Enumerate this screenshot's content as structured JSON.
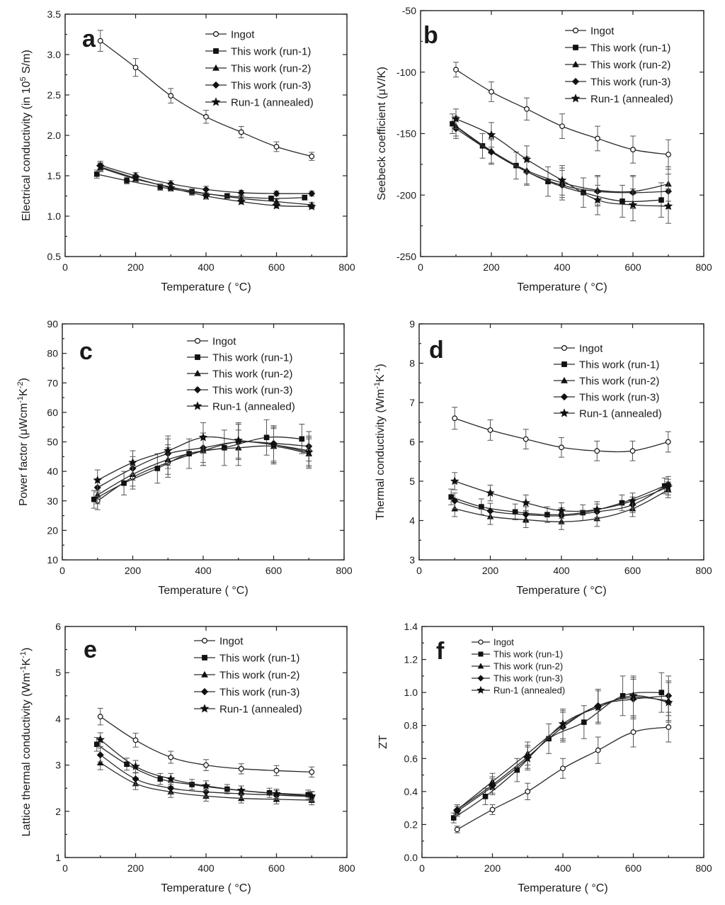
{
  "chart_data": [
    {
      "id": "a",
      "type": "line",
      "panel_letter": "a",
      "xlabel": "Temperature ( °C)",
      "ylabel": "Electrical conductivity (in 10^5 S/m)",
      "ylabel_parts": [
        "Electrical conductivity (in 10",
        "5",
        " S/m)"
      ],
      "xlim": [
        0,
        800
      ],
      "xticks": [
        0,
        200,
        400,
        600,
        800
      ],
      "ylim": [
        0.5,
        3.5
      ],
      "yticks": [
        0.5,
        1.0,
        1.5,
        2.0,
        2.5,
        3.0,
        3.5
      ],
      "ytick_decimals": 1,
      "legend_size": "normal",
      "series": [
        {
          "name": "Ingot",
          "marker": "circle-open",
          "x": [
            100,
            200,
            300,
            400,
            500,
            600,
            700
          ],
          "y": [
            3.17,
            2.84,
            2.49,
            2.23,
            2.04,
            1.86,
            1.74
          ],
          "err": [
            0.13,
            0.11,
            0.09,
            0.08,
            0.07,
            0.06,
            0.05
          ]
        },
        {
          "name": "This work (run-1)",
          "marker": "square",
          "x": [
            90,
            175,
            270,
            360,
            460,
            585,
            680
          ],
          "y": [
            1.52,
            1.44,
            1.36,
            1.3,
            1.25,
            1.22,
            1.23
          ],
          "err": [
            0.05,
            0.04,
            0.04,
            0.04,
            0.03,
            0.03,
            0.03
          ]
        },
        {
          "name": "This work (run-2)",
          "marker": "triangle",
          "x": [
            100,
            200,
            300,
            400,
            500,
            600,
            700
          ],
          "y": [
            1.6,
            1.46,
            1.36,
            1.28,
            1.22,
            1.18,
            1.14
          ],
          "err": [
            0.05,
            0.04,
            0.04,
            0.04,
            0.03,
            0.03,
            0.03
          ]
        },
        {
          "name": "This work (run-3)",
          "marker": "diamond",
          "x": [
            100,
            200,
            300,
            400,
            500,
            600,
            700
          ],
          "y": [
            1.63,
            1.5,
            1.4,
            1.33,
            1.29,
            1.28,
            1.28
          ],
          "err": [
            0.05,
            0.04,
            0.04,
            0.04,
            0.03,
            0.03,
            0.03
          ]
        },
        {
          "name": "Run-1 (annealed)",
          "marker": "star",
          "x": [
            100,
            200,
            300,
            400,
            500,
            600,
            700
          ],
          "y": [
            1.61,
            1.47,
            1.35,
            1.25,
            1.18,
            1.13,
            1.12
          ],
          "err": [
            0.05,
            0.04,
            0.04,
            0.04,
            0.03,
            0.03,
            0.03
          ]
        }
      ]
    },
    {
      "id": "b",
      "type": "line",
      "panel_letter": "b",
      "xlabel": "Temperature ( °C)",
      "ylabel": "Seebeck coefficient (μV/K)",
      "xlim": [
        0,
        800
      ],
      "xticks": [
        0,
        200,
        400,
        600,
        800
      ],
      "ylim": [
        -250,
        -50
      ],
      "yticks": [
        -250,
        -200,
        -150,
        -100,
        -50
      ],
      "ytick_decimals": 0,
      "legend_size": "normal",
      "series": [
        {
          "name": "Ingot",
          "marker": "circle-open",
          "x": [
            100,
            200,
            300,
            400,
            500,
            600,
            700
          ],
          "y": [
            -98,
            -116,
            -130,
            -144,
            -154,
            -163,
            -167
          ],
          "err": [
            6,
            8,
            9,
            10,
            10,
            11,
            12
          ]
        },
        {
          "name": "This work (run-1)",
          "marker": "square",
          "x": [
            90,
            175,
            270,
            360,
            460,
            570,
            680
          ],
          "y": [
            -142,
            -160,
            -176,
            -189,
            -198,
            -205,
            -204
          ],
          "err": [
            8,
            10,
            11,
            12,
            12,
            13,
            14
          ]
        },
        {
          "name": "This work (run-2)",
          "marker": "triangle",
          "x": [
            100,
            200,
            300,
            400,
            500,
            600,
            700
          ],
          "y": [
            -144,
            -164,
            -180,
            -190,
            -196,
            -197,
            -191
          ],
          "err": [
            8,
            10,
            11,
            12,
            12,
            13,
            14
          ]
        },
        {
          "name": "This work (run-3)",
          "marker": "diamond",
          "x": [
            100,
            200,
            300,
            400,
            500,
            600,
            700
          ],
          "y": [
            -146,
            -165,
            -181,
            -192,
            -197,
            -198,
            -197
          ],
          "err": [
            8,
            10,
            11,
            12,
            12,
            13,
            14
          ]
        },
        {
          "name": "Run-1 (annealed)",
          "marker": "star",
          "x": [
            100,
            200,
            300,
            400,
            500,
            600,
            700
          ],
          "y": [
            -138,
            -151,
            -171,
            -188,
            -204,
            -208,
            -209
          ],
          "err": [
            8,
            10,
            11,
            12,
            12,
            13,
            14
          ]
        }
      ]
    },
    {
      "id": "c",
      "type": "line",
      "panel_letter": "c",
      "xlabel": "Temperature ( °C)",
      "ylabel": "Power factor (μWcm^-1K^-2)",
      "ylabel_parts": [
        "Power factor (μWcm",
        "-1",
        "K",
        "-2",
        ")"
      ],
      "xlim": [
        0,
        800
      ],
      "xticks": [
        0,
        200,
        400,
        600,
        800
      ],
      "ylim": [
        10,
        90
      ],
      "yticks": [
        10,
        20,
        30,
        40,
        50,
        60,
        70,
        80,
        90
      ],
      "ytick_decimals": 0,
      "legend_size": "normal",
      "series": [
        {
          "name": "Ingot",
          "marker": "circle-open",
          "x": [
            100,
            200,
            300,
            400,
            500,
            600,
            700
          ],
          "y": [
            30,
            38,
            43,
            47,
            50,
            49,
            47
          ],
          "err": [
            3,
            4,
            5,
            5,
            6,
            6,
            5
          ]
        },
        {
          "name": "This work (run-1)",
          "marker": "square",
          "x": [
            90,
            175,
            270,
            360,
            460,
            580,
            680
          ],
          "y": [
            30.5,
            36,
            41,
            46,
            48,
            51.5,
            51
          ],
          "err": [
            3,
            4,
            5,
            5,
            6,
            6,
            5
          ]
        },
        {
          "name": "This work (run-2)",
          "marker": "triangle",
          "x": [
            100,
            200,
            300,
            400,
            500,
            600,
            700
          ],
          "y": [
            32,
            39,
            44,
            47,
            48,
            48.5,
            46
          ],
          "err": [
            3,
            4,
            5,
            5,
            6,
            6,
            5
          ]
        },
        {
          "name": "This work (run-3)",
          "marker": "diamond",
          "x": [
            100,
            200,
            300,
            400,
            500,
            600,
            700
          ],
          "y": [
            34.5,
            41,
            46,
            48,
            50,
            49.5,
            48.5
          ],
          "err": [
            3,
            4,
            5,
            5,
            6,
            6,
            5
          ]
        },
        {
          "name": "Run-1 (annealed)",
          "marker": "star",
          "x": [
            100,
            200,
            300,
            400,
            500,
            600,
            700
          ],
          "y": [
            37,
            43,
            47,
            51.5,
            50.5,
            49,
            46.5
          ],
          "err": [
            3.5,
            4,
            5,
            5,
            6,
            6,
            5
          ]
        }
      ]
    },
    {
      "id": "d",
      "type": "line",
      "panel_letter": "d",
      "xlabel": "Temperature ( °C)",
      "ylabel": "Thermal conductivity (Wm^-1K^-1)",
      "ylabel_parts": [
        "Thermal conductivity (Wm",
        "-1",
        "K",
        "-1",
        ")"
      ],
      "xlim": [
        0,
        800
      ],
      "xticks": [
        0,
        200,
        400,
        600,
        800
      ],
      "ylim": [
        3,
        9
      ],
      "yticks": [
        3,
        4,
        5,
        6,
        7,
        8,
        9
      ],
      "ytick_decimals": 0,
      "legend_size": "normal",
      "series": [
        {
          "name": "Ingot",
          "marker": "circle-open",
          "x": [
            100,
            200,
            300,
            400,
            500,
            600,
            700
          ],
          "y": [
            6.6,
            6.3,
            6.07,
            5.86,
            5.77,
            5.77,
            6.0
          ],
          "err": [
            0.28,
            0.26,
            0.25,
            0.25,
            0.25,
            0.25,
            0.26
          ]
        },
        {
          "name": "This work (run-1)",
          "marker": "square",
          "x": [
            90,
            175,
            270,
            360,
            460,
            570,
            690
          ],
          "y": [
            4.6,
            4.35,
            4.22,
            4.15,
            4.2,
            4.45,
            4.88
          ],
          "err": [
            0.2,
            0.2,
            0.2,
            0.2,
            0.2,
            0.2,
            0.2
          ]
        },
        {
          "name": "This work (run-2)",
          "marker": "triangle",
          "x": [
            100,
            200,
            300,
            400,
            500,
            600,
            700
          ],
          "y": [
            4.3,
            4.1,
            4.02,
            3.97,
            4.05,
            4.3,
            4.78
          ],
          "err": [
            0.2,
            0.2,
            0.2,
            0.2,
            0.2,
            0.2,
            0.2
          ]
        },
        {
          "name": "This work (run-3)",
          "marker": "diamond",
          "x": [
            100,
            200,
            300,
            400,
            500,
            600,
            700
          ],
          "y": [
            4.5,
            4.24,
            4.15,
            4.12,
            4.22,
            4.4,
            4.92
          ],
          "err": [
            0.2,
            0.2,
            0.2,
            0.2,
            0.2,
            0.2,
            0.2
          ]
        },
        {
          "name": "Run-1 (annealed)",
          "marker": "star",
          "x": [
            100,
            200,
            300,
            400,
            500,
            600,
            700
          ],
          "y": [
            5.0,
            4.7,
            4.45,
            4.25,
            4.28,
            4.5,
            4.85
          ],
          "err": [
            0.22,
            0.2,
            0.2,
            0.2,
            0.2,
            0.2,
            0.2
          ]
        }
      ]
    },
    {
      "id": "e",
      "type": "line",
      "panel_letter": "e",
      "xlabel": "Temperature ( °C)",
      "ylabel": "Lattice thermal conductivity (Wm^-1K^-1)",
      "ylabel_parts": [
        "Lattice thermal conductivity (Wm",
        "-1",
        "K",
        "-1",
        ")"
      ],
      "xlim": [
        0,
        800
      ],
      "xticks": [
        0,
        200,
        400,
        600,
        800
      ],
      "ylim": [
        1,
        6
      ],
      "yticks": [
        1,
        2,
        3,
        4,
        5,
        6
      ],
      "ytick_decimals": 0,
      "legend_size": "normal",
      "series": [
        {
          "name": "Ingot",
          "marker": "circle-open",
          "x": [
            100,
            200,
            300,
            400,
            500,
            600,
            700
          ],
          "y": [
            4.05,
            3.54,
            3.17,
            3.0,
            2.92,
            2.88,
            2.85
          ],
          "err": [
            0.18,
            0.15,
            0.13,
            0.12,
            0.11,
            0.11,
            0.11
          ]
        },
        {
          "name": "This work (run-1)",
          "marker": "square",
          "x": [
            90,
            175,
            270,
            360,
            460,
            580,
            690
          ],
          "y": [
            3.45,
            3.02,
            2.7,
            2.58,
            2.48,
            2.4,
            2.36
          ],
          "err": [
            0.15,
            0.13,
            0.12,
            0.11,
            0.1,
            0.1,
            0.1
          ]
        },
        {
          "name": "This work (run-2)",
          "marker": "triangle",
          "x": [
            100,
            200,
            300,
            400,
            500,
            600,
            700
          ],
          "y": [
            3.05,
            2.6,
            2.42,
            2.33,
            2.28,
            2.26,
            2.24
          ],
          "err": [
            0.15,
            0.13,
            0.12,
            0.11,
            0.1,
            0.1,
            0.1
          ]
        },
        {
          "name": "This work (run-3)",
          "marker": "diamond",
          "x": [
            100,
            200,
            300,
            400,
            500,
            600,
            700
          ],
          "y": [
            3.22,
            2.7,
            2.5,
            2.42,
            2.38,
            2.35,
            2.32
          ],
          "err": [
            0.15,
            0.13,
            0.12,
            0.11,
            0.1,
            0.1,
            0.1
          ]
        },
        {
          "name": "Run-1 (annealed)",
          "marker": "star",
          "x": [
            100,
            200,
            300,
            400,
            500,
            600,
            700
          ],
          "y": [
            3.55,
            2.97,
            2.7,
            2.55,
            2.45,
            2.38,
            2.33
          ],
          "err": [
            0.15,
            0.13,
            0.12,
            0.11,
            0.1,
            0.1,
            0.1
          ]
        }
      ]
    },
    {
      "id": "f",
      "type": "line",
      "panel_letter": "f",
      "xlabel": "Temperature ( °C)",
      "ylabel": "ZT",
      "xlim": [
        0,
        800
      ],
      "xticks": [
        0,
        200,
        400,
        600,
        800
      ],
      "ylim": [
        0.0,
        1.4
      ],
      "yticks": [
        0.0,
        0.2,
        0.4,
        0.6,
        0.8,
        1.0,
        1.2,
        1.4
      ],
      "ytick_decimals": 1,
      "legend_size": "small",
      "series": [
        {
          "name": "Ingot",
          "marker": "circle-open",
          "x": [
            100,
            200,
            300,
            400,
            500,
            600,
            700
          ],
          "y": [
            0.17,
            0.29,
            0.4,
            0.54,
            0.65,
            0.76,
            0.79
          ],
          "err": [
            0.02,
            0.03,
            0.05,
            0.06,
            0.08,
            0.09,
            0.09
          ]
        },
        {
          "name": "This work (run-1)",
          "marker": "square",
          "x": [
            90,
            180,
            270,
            360,
            460,
            570,
            680
          ],
          "y": [
            0.24,
            0.37,
            0.53,
            0.72,
            0.82,
            0.98,
            1.0
          ],
          "err": [
            0.03,
            0.05,
            0.07,
            0.09,
            0.1,
            0.12,
            0.12
          ]
        },
        {
          "name": "This work (run-2)",
          "marker": "triangle",
          "x": [
            100,
            200,
            300,
            400,
            500,
            600,
            700
          ],
          "y": [
            0.29,
            0.46,
            0.63,
            0.8,
            0.92,
            0.97,
            0.95
          ],
          "err": [
            0.03,
            0.05,
            0.07,
            0.09,
            0.1,
            0.12,
            0.12
          ]
        },
        {
          "name": "This work (run-3)",
          "marker": "diamond",
          "x": [
            100,
            200,
            300,
            400,
            500,
            600,
            700
          ],
          "y": [
            0.29,
            0.44,
            0.61,
            0.79,
            0.92,
            0.96,
            0.98
          ],
          "err": [
            0.03,
            0.05,
            0.07,
            0.09,
            0.1,
            0.12,
            0.12
          ]
        },
        {
          "name": "Run-1 (annealed)",
          "marker": "star",
          "x": [
            100,
            200,
            300,
            400,
            500,
            600,
            700
          ],
          "y": [
            0.28,
            0.43,
            0.6,
            0.81,
            0.91,
            0.98,
            0.94
          ],
          "err": [
            0.03,
            0.05,
            0.07,
            0.09,
            0.1,
            0.12,
            0.12
          ]
        }
      ]
    }
  ]
}
